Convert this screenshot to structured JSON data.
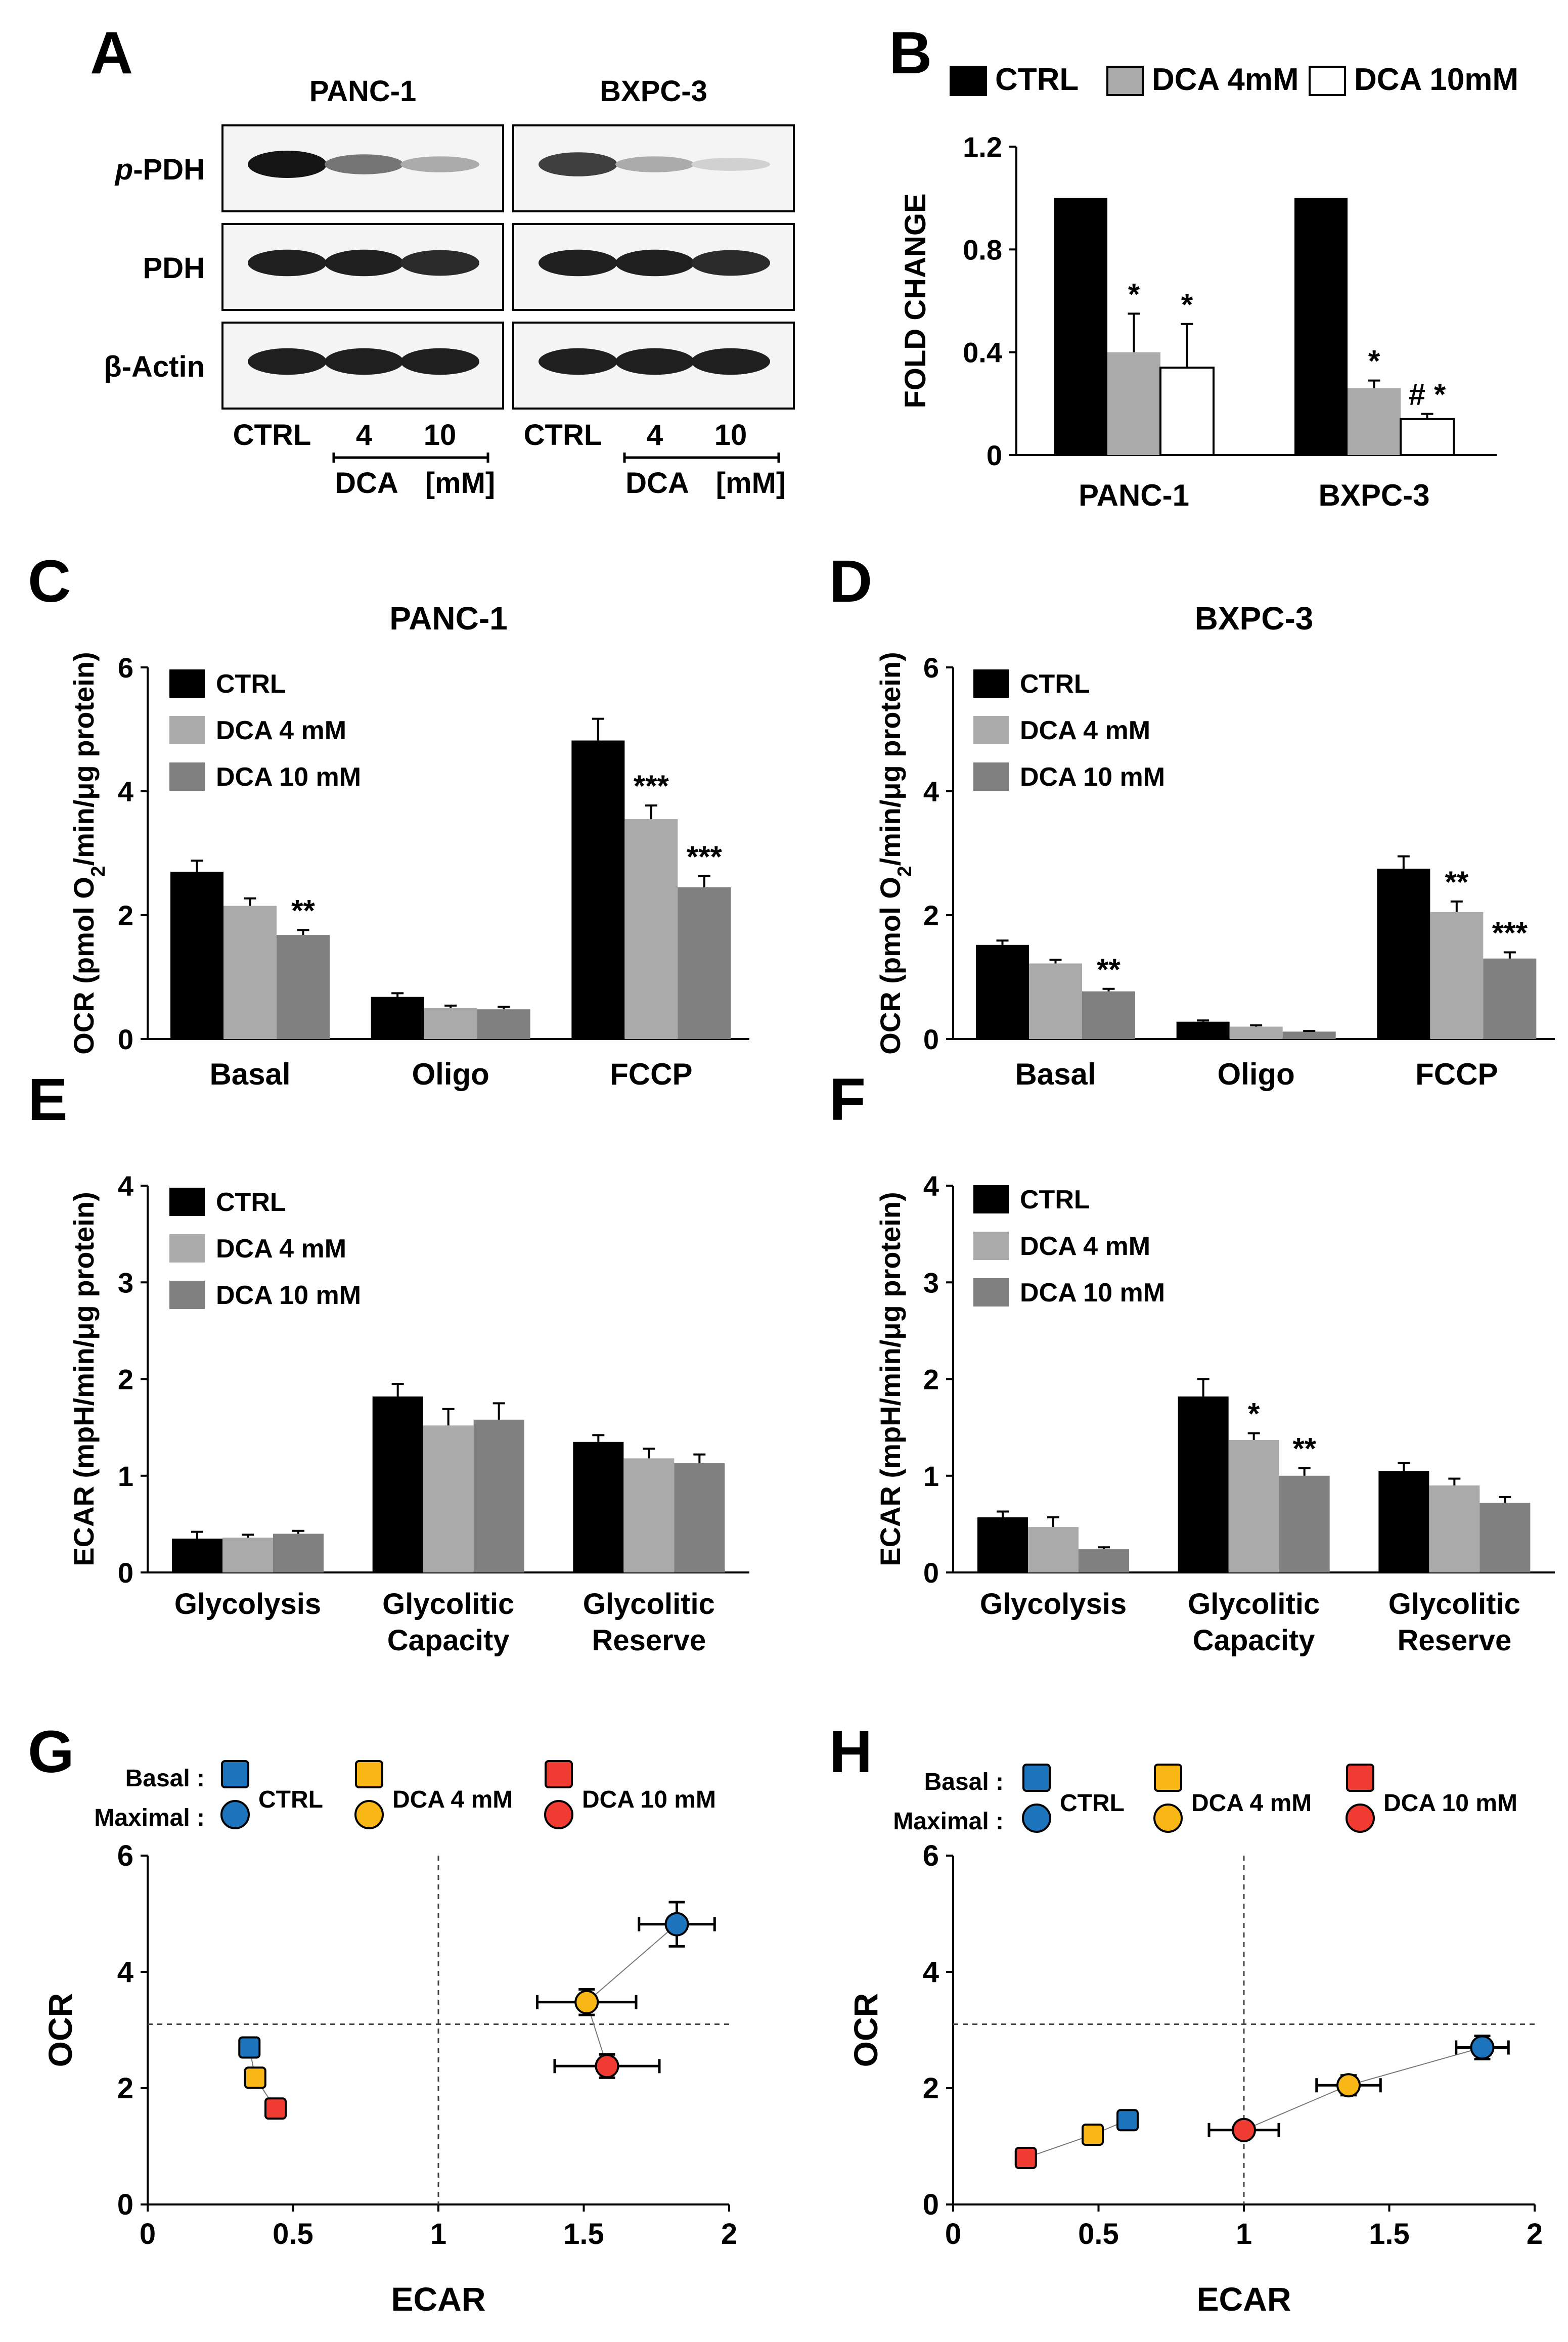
{
  "panels": {
    "A": "A",
    "B": "B",
    "C": "C",
    "D": "D",
    "E": "E",
    "F": "F",
    "G": "G",
    "H": "H"
  },
  "western": {
    "cell_lines": [
      "PANC-1",
      "BXPC-3"
    ],
    "rows": [
      {
        "label_prefix": "p",
        "label_rest": "-PDH"
      },
      {
        "label_prefix": "",
        "label_rest": "PDH"
      },
      {
        "label_prefix": "",
        "label_rest": "β-Actin"
      }
    ],
    "lanes": [
      "CTRL",
      "4",
      "10"
    ],
    "treatment": "DCA",
    "unit": "[mM]",
    "band_intensity": [
      [
        [
          1.0,
          0.55,
          0.3
        ],
        [
          0.8,
          0.3,
          0.12
        ]
      ],
      [
        [
          0.95,
          0.95,
          0.9
        ],
        [
          0.95,
          0.95,
          0.9
        ]
      ],
      [
        [
          0.95,
          0.95,
          0.95
        ],
        [
          0.95,
          0.95,
          0.95
        ]
      ]
    ]
  },
  "chart_data": [
    {
      "id": "B",
      "type": "bar",
      "legend": [
        "CTRL",
        "DCA 4mM",
        "DCA 10mM"
      ],
      "colors": [
        "#000000",
        "#aaaaaa",
        "#ffffff"
      ],
      "ylabel": "FOLD CHANGE",
      "ylim": [
        0,
        1.2
      ],
      "yticks": [
        "0",
        "0.4",
        "0.8",
        "1.2"
      ],
      "yticks_values": [
        0,
        0.4,
        0.8,
        1.2
      ],
      "categories": [
        "PANC-1",
        "BXPC-3"
      ],
      "series": [
        {
          "name": "CTRL",
          "values": [
            1.0,
            1.0
          ],
          "errors": [
            0,
            0
          ]
        },
        {
          "name": "DCA 4mM",
          "values": [
            0.4,
            0.26
          ],
          "errors": [
            0.15,
            0.03
          ]
        },
        {
          "name": "DCA 10mM",
          "values": [
            0.34,
            0.14
          ],
          "errors": [
            0.17,
            0.02
          ]
        }
      ],
      "annotations": [
        {
          "group": 0,
          "series": 1,
          "text": "*"
        },
        {
          "group": 0,
          "series": 2,
          "text": "*"
        },
        {
          "group": 1,
          "series": 1,
          "text": "*"
        },
        {
          "group": 1,
          "series": 2,
          "text": "# *"
        }
      ]
    },
    {
      "id": "C",
      "type": "bar",
      "title": "PANC-1",
      "legend": [
        "CTRL",
        "DCA 4 mM",
        "DCA 10 mM"
      ],
      "colors": [
        "#000000",
        "#aaaaaa",
        "#808080"
      ],
      "ylabel_pre": "OCR (pmol O",
      "ylabel_sub": "2",
      "ylabel_post": "/min/μg protein)",
      "ylim": [
        0,
        6
      ],
      "yticks": [
        "0",
        "2",
        "4",
        "6"
      ],
      "yticks_values": [
        0,
        2,
        4,
        6
      ],
      "categories": [
        [
          "Basal"
        ],
        [
          "Oligo"
        ],
        [
          "FCCP"
        ]
      ],
      "series": [
        {
          "name": "CTRL",
          "values": [
            2.7,
            0.68,
            4.82
          ],
          "errors": [
            0.18,
            0.06,
            0.35
          ]
        },
        {
          "name": "DCA 4 mM",
          "values": [
            2.15,
            0.5,
            3.55
          ],
          "errors": [
            0.12,
            0.04,
            0.22
          ]
        },
        {
          "name": "DCA 10 mM",
          "values": [
            1.68,
            0.48,
            2.45
          ],
          "errors": [
            0.08,
            0.04,
            0.18
          ]
        }
      ],
      "annotations": [
        {
          "group": 0,
          "series": 2,
          "text": "**"
        },
        {
          "group": 2,
          "series": 1,
          "text": "***"
        },
        {
          "group": 2,
          "series": 2,
          "text": "***"
        }
      ]
    },
    {
      "id": "D",
      "type": "bar",
      "title": "BXPC-3",
      "legend": [
        "CTRL",
        "DCA 4 mM",
        "DCA 10 mM"
      ],
      "colors": [
        "#000000",
        "#aaaaaa",
        "#808080"
      ],
      "ylabel_pre": "OCR (pmol O",
      "ylabel_sub": "2",
      "ylabel_post": "/min/μg protein)",
      "ylim": [
        0,
        6
      ],
      "yticks": [
        "0",
        "2",
        "4",
        "6"
      ],
      "yticks_values": [
        0,
        2,
        4,
        6
      ],
      "categories": [
        [
          "Basal"
        ],
        [
          "Oligo"
        ],
        [
          "FCCP"
        ]
      ],
      "series": [
        {
          "name": "CTRL",
          "values": [
            1.52,
            0.28,
            2.75
          ],
          "errors": [
            0.07,
            0.02,
            0.2
          ]
        },
        {
          "name": "DCA 4 mM",
          "values": [
            1.22,
            0.2,
            2.05
          ],
          "errors": [
            0.06,
            0.02,
            0.17
          ]
        },
        {
          "name": "DCA 10 mM",
          "values": [
            0.77,
            0.12,
            1.3
          ],
          "errors": [
            0.04,
            0.01,
            0.1
          ]
        }
      ],
      "annotations": [
        {
          "group": 0,
          "series": 2,
          "text": "**"
        },
        {
          "group": 2,
          "series": 1,
          "text": "**"
        },
        {
          "group": 2,
          "series": 2,
          "text": "***"
        }
      ]
    },
    {
      "id": "E",
      "type": "bar",
      "legend": [
        "CTRL",
        "DCA 4 mM",
        "DCA 10 mM"
      ],
      "colors": [
        "#000000",
        "#aaaaaa",
        "#808080"
      ],
      "ylabel_pre": "ECAR (mpH/min/μg protein)",
      "ylabel_sub": "",
      "ylabel_post": "",
      "ylim": [
        0,
        4
      ],
      "yticks": [
        "0",
        "1",
        "2",
        "3",
        "4"
      ],
      "yticks_values": [
        0,
        1,
        2,
        3,
        4
      ],
      "categories": [
        [
          "Glycolysis"
        ],
        [
          "Glycolitic",
          "Capacity"
        ],
        [
          "Glycolitic",
          "Reserve"
        ]
      ],
      "series": [
        {
          "name": "CTRL",
          "values": [
            0.35,
            1.82,
            1.35
          ],
          "errors": [
            0.07,
            0.13,
            0.07
          ]
        },
        {
          "name": "DCA 4 mM",
          "values": [
            0.36,
            1.52,
            1.18
          ],
          "errors": [
            0.03,
            0.17,
            0.1
          ]
        },
        {
          "name": "DCA 10 mM",
          "values": [
            0.4,
            1.58,
            1.13
          ],
          "errors": [
            0.03,
            0.17,
            0.09
          ]
        }
      ],
      "annotations": []
    },
    {
      "id": "F",
      "type": "bar",
      "legend": [
        "CTRL",
        "DCA 4 mM",
        "DCA 10 mM"
      ],
      "colors": [
        "#000000",
        "#aaaaaa",
        "#808080"
      ],
      "ylabel_pre": "ECAR (mpH/min/μg protein)",
      "ylabel_sub": "",
      "ylabel_post": "",
      "ylim": [
        0,
        4
      ],
      "yticks": [
        "0",
        "1",
        "2",
        "3",
        "4"
      ],
      "yticks_values": [
        0,
        1,
        2,
        3,
        4
      ],
      "categories": [
        [
          "Glycolysis"
        ],
        [
          "Glycolitic",
          "Capacity"
        ],
        [
          "Glycolitic",
          "Reserve"
        ]
      ],
      "series": [
        {
          "name": "CTRL",
          "values": [
            0.57,
            1.82,
            1.05
          ],
          "errors": [
            0.06,
            0.18,
            0.08
          ]
        },
        {
          "name": "DCA 4 mM",
          "values": [
            0.47,
            1.37,
            0.9
          ],
          "errors": [
            0.1,
            0.07,
            0.07
          ]
        },
        {
          "name": "DCA 10 mM",
          "values": [
            0.24,
            1.0,
            0.72
          ],
          "errors": [
            0.02,
            0.08,
            0.06
          ]
        }
      ],
      "annotations": [
        {
          "group": 1,
          "series": 1,
          "text": "*"
        },
        {
          "group": 1,
          "series": 2,
          "text": "**"
        }
      ]
    },
    {
      "id": "G",
      "type": "scatter",
      "legend": {
        "basal_label": "Basal :",
        "maximal_label": "Maximal :",
        "entries": [
          "CTRL",
          "DCA 4 mM",
          "DCA 10 mM"
        ]
      },
      "colors": [
        "#1c74bc",
        "#f9b716",
        "#ef3b31"
      ],
      "xlabel": "ECAR",
      "ylabel": "OCR",
      "xlim": [
        0,
        2
      ],
      "ylim": [
        0,
        6
      ],
      "xticks": [
        "0",
        "0.5",
        "1",
        "1.5",
        "2"
      ],
      "xticks_values": [
        0,
        0.5,
        1,
        1.5,
        2
      ],
      "yticks": [
        "0",
        "2",
        "4",
        "6"
      ],
      "yticks_values": [
        0,
        2,
        4,
        6
      ],
      "ref_x": 1.0,
      "ref_y": 3.1,
      "basal": [
        {
          "x": 0.35,
          "y": 2.7,
          "xerr": 0.02,
          "yerr": 0.0
        },
        {
          "x": 0.37,
          "y": 2.18,
          "xerr": 0.0,
          "yerr": 0.0
        },
        {
          "x": 0.44,
          "y": 1.65,
          "xerr": 0.0,
          "yerr": 0.0
        }
      ],
      "maximal": [
        {
          "x": 1.82,
          "y": 4.82,
          "xerr": 0.13,
          "yerr": 0.38
        },
        {
          "x": 1.51,
          "y": 3.48,
          "xerr": 0.17,
          "yerr": 0.22
        },
        {
          "x": 1.58,
          "y": 2.38,
          "xerr": 0.18,
          "yerr": 0.2
        }
      ]
    },
    {
      "id": "H",
      "type": "scatter",
      "legend": {
        "basal_label": "Basal :",
        "maximal_label": "Maximal :",
        "entries": [
          "CTRL",
          "DCA 4 mM",
          "DCA 10 mM"
        ]
      },
      "colors": [
        "#1c74bc",
        "#f9b716",
        "#ef3b31"
      ],
      "xlabel": "ECAR",
      "ylabel": "OCR",
      "xlim": [
        0,
        2
      ],
      "ylim": [
        0,
        6
      ],
      "xticks": [
        "0",
        "0.5",
        "1",
        "1.5",
        "2"
      ],
      "xticks_values": [
        0,
        0.5,
        1,
        1.5,
        2
      ],
      "yticks": [
        "0",
        "2",
        "4",
        "6"
      ],
      "yticks_values": [
        0,
        2,
        4,
        6
      ],
      "ref_x": 1.0,
      "ref_y": 3.1,
      "basal": [
        {
          "x": 0.6,
          "y": 1.45,
          "xerr": 0.02,
          "yerr": 0.08
        },
        {
          "x": 0.48,
          "y": 1.2,
          "xerr": 0.02,
          "yerr": 0.06
        },
        {
          "x": 0.25,
          "y": 0.8,
          "xerr": 0.0,
          "yerr": 0.04
        }
      ],
      "maximal": [
        {
          "x": 1.82,
          "y": 2.7,
          "xerr": 0.09,
          "yerr": 0.2
        },
        {
          "x": 1.36,
          "y": 2.05,
          "xerr": 0.11,
          "yerr": 0.17
        },
        {
          "x": 1.0,
          "y": 1.28,
          "xerr": 0.12,
          "yerr": 0.1
        }
      ]
    }
  ]
}
